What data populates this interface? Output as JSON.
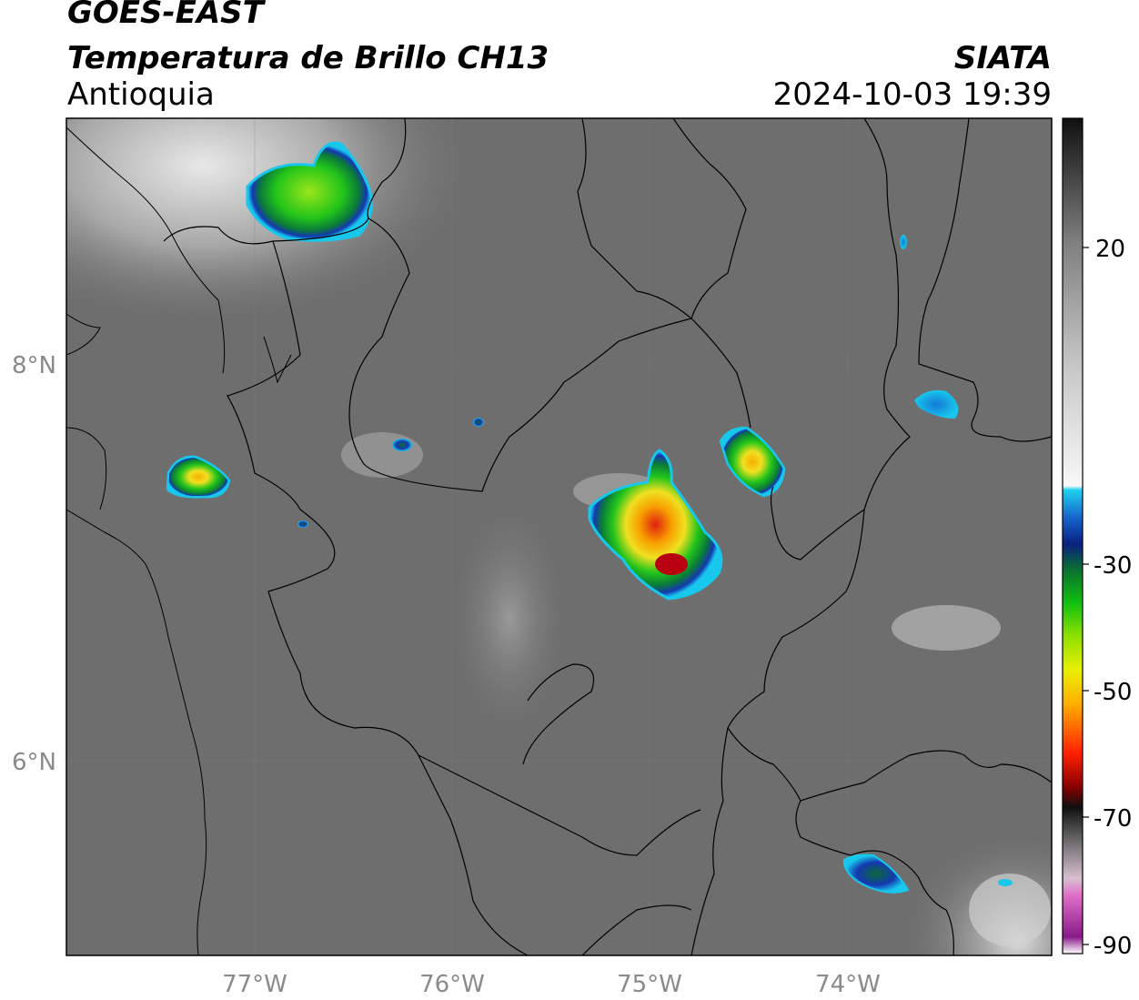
{
  "header": {
    "line1": "GOES-EAST",
    "line2": "Temperatura de Brillo CH13",
    "line3": "Antioquia",
    "org": "SIATA",
    "timestamp": "2024-10-03 19:39"
  },
  "axes": {
    "lon_labels": [
      "77°W",
      "76°W",
      "75°W",
      "74°W"
    ],
    "lat_labels": [
      "8°N",
      "6°N"
    ]
  },
  "colorbar": {
    "tick_labels": [
      "20",
      "-30",
      "-50",
      "-70",
      "-90"
    ]
  },
  "colors": {
    "background_gray": "#6e6e6e",
    "cold_green": "#22c41a",
    "cold_yellow": "#f0e020",
    "cold_red": "#e02010",
    "cold_blue": "#1438b0",
    "cold_cyan": "#18c8ec",
    "border": "#000000"
  }
}
